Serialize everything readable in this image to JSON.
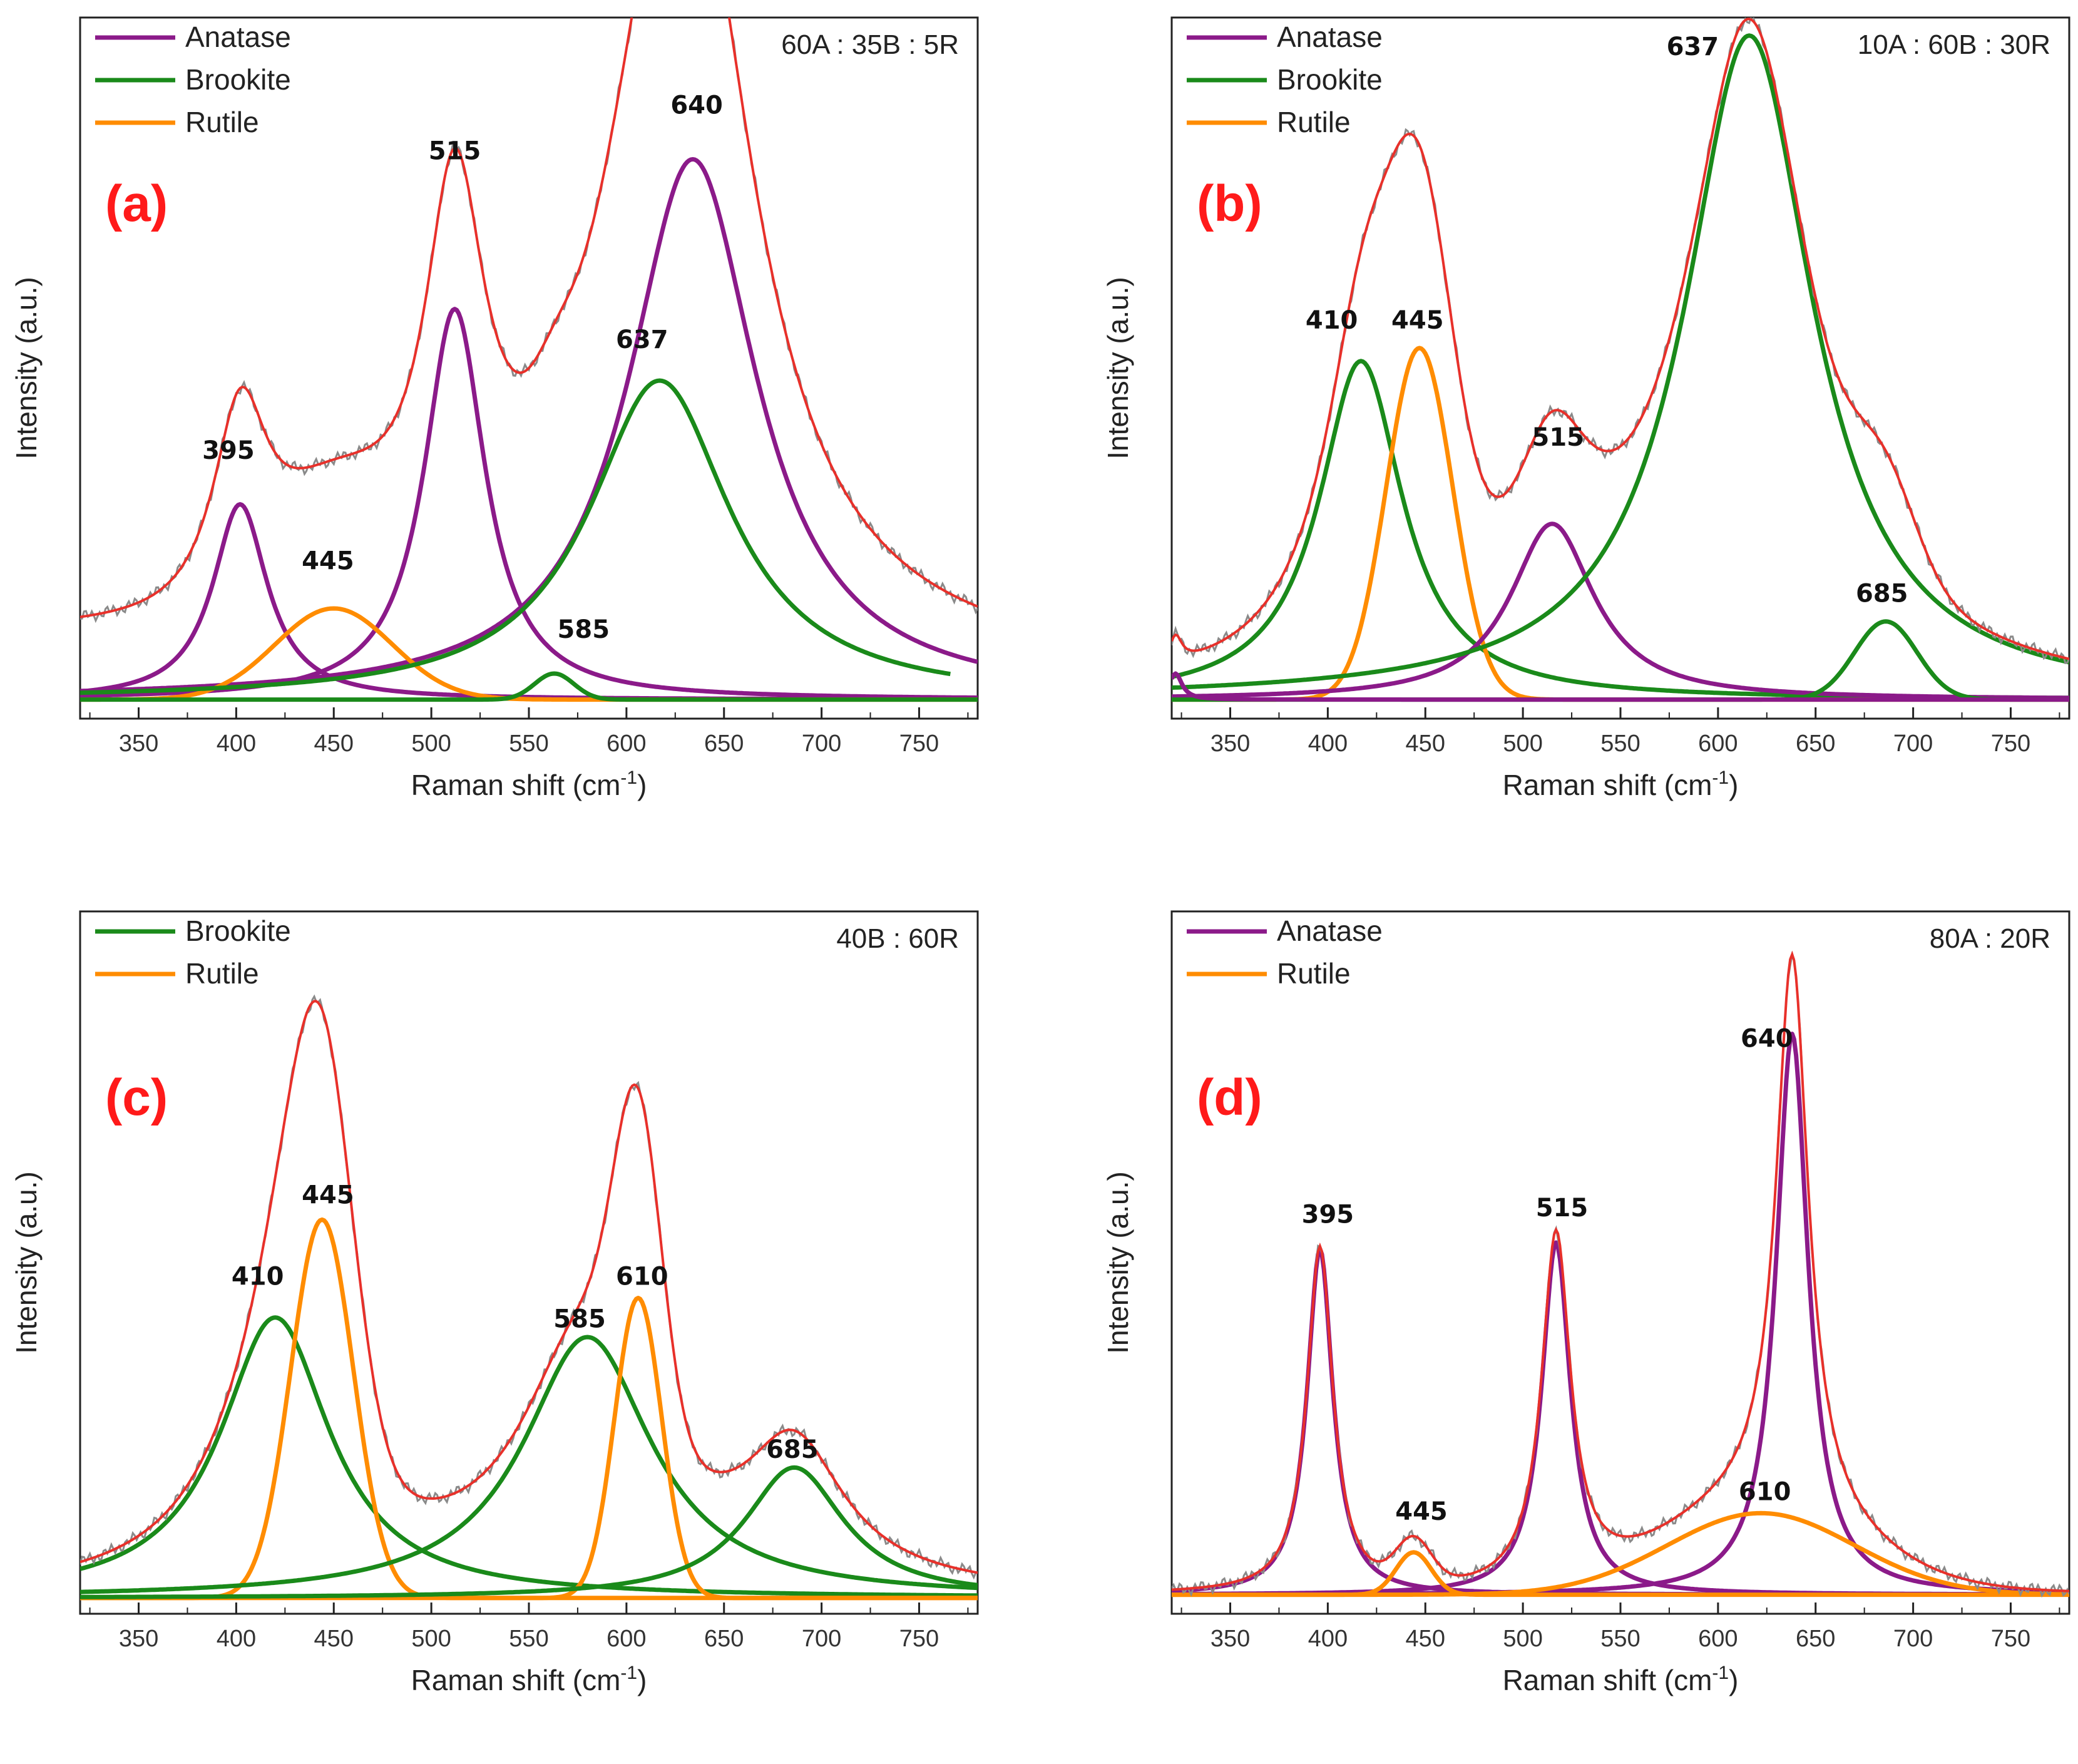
{
  "colors": {
    "anatase": "#8b1a89",
    "brookite": "#1a8a1a",
    "rutile": "#ff8c00",
    "fit": "#e8302a",
    "raw": "#8a8a8a",
    "panel_label": "#ff1a1a"
  },
  "chart_data": [
    {
      "type": "line",
      "panel": "(a)",
      "ratio": "60A : 35B : 5R",
      "xlabel_main": "Raman shift (cm",
      "xlabel_sup": "-1",
      "xlabel_close": ")",
      "ylabel": "Intensity (a.u.)",
      "xlim": [
        320,
        780
      ],
      "ylim": [
        0,
        1
      ],
      "xticks": [
        350,
        400,
        450,
        500,
        550,
        600,
        650,
        700,
        750
      ],
      "baseline": 0.01,
      "fit_offset": [
        0.095,
        -8e-05
      ],
      "fit_range": [
        320,
        780
      ],
      "legend": [
        {
          "name": "Anatase",
          "phase": "anatase"
        },
        {
          "name": "Brookite",
          "phase": "brookite"
        },
        {
          "name": "Rutile",
          "phase": "rutile"
        }
      ],
      "series": [
        {
          "phase": "anatase",
          "center": 402,
          "height": 0.3,
          "width": 17,
          "shape": "lorentz",
          "from": 320,
          "to": 780
        },
        {
          "phase": "anatase",
          "center": 512,
          "height": 0.6,
          "width": 19,
          "shape": "lorentz",
          "from": 320,
          "to": 780
        },
        {
          "phase": "anatase",
          "center": 634,
          "height": 0.83,
          "width": 40,
          "shape": "lorentz",
          "from": 320,
          "to": 780
        },
        {
          "phase": "rutile",
          "center": 450,
          "height": 0.14,
          "width": 30,
          "shape": "gauss",
          "from": 320,
          "to": 780
        },
        {
          "phase": "brookite",
          "center": 617,
          "height": 0.49,
          "width": 44,
          "shape": "lorentz",
          "from": 320,
          "to": 766
        },
        {
          "phase": "brookite",
          "center": 563,
          "height": 0.04,
          "width": 10,
          "shape": "gauss",
          "from": 320,
          "to": 780
        }
      ],
      "peak_labels": [
        {
          "text": "395",
          "x": 396,
          "y": 0.38
        },
        {
          "text": "445",
          "x": 447,
          "y": 0.21
        },
        {
          "text": "515",
          "x": 512,
          "y": 0.84
        },
        {
          "text": "585",
          "x": 578,
          "y": 0.105
        },
        {
          "text": "637",
          "x": 608,
          "y": 0.55
        },
        {
          "text": "640",
          "x": 636,
          "y": 0.91
        }
      ]
    },
    {
      "type": "line",
      "panel": "(b)",
      "ratio": "10A : 60B : 30R",
      "xlabel_main": "Raman shift (cm",
      "xlabel_sup": "-1",
      "xlabel_close": ")",
      "ylabel": "Intensity (a.u.)",
      "xlim": [
        320,
        780
      ],
      "ylim": [
        0,
        1
      ],
      "xticks": [
        350,
        400,
        450,
        500,
        550,
        600,
        650,
        700,
        750
      ],
      "baseline": 0.01,
      "fit_offset": [
        0.01,
        0
      ],
      "fit_range": [
        320,
        780
      ],
      "legend": [
        {
          "name": "Anatase",
          "phase": "anatase"
        },
        {
          "name": "Brookite",
          "phase": "brookite"
        },
        {
          "name": "Rutile",
          "phase": "rutile"
        }
      ],
      "series": [
        {
          "phase": "brookite",
          "center": 417,
          "height": 0.52,
          "width": 26,
          "shape": "lorentz",
          "from": 320,
          "to": 780
        },
        {
          "phase": "rutile",
          "center": 447,
          "height": 0.54,
          "width": 17,
          "shape": "gauss",
          "from": 320,
          "to": 780
        },
        {
          "phase": "anatase",
          "center": 515,
          "height": 0.27,
          "width": 26,
          "shape": "lorentz",
          "from": 320,
          "to": 780
        },
        {
          "phase": "brookite",
          "center": 616,
          "height": 1.02,
          "width": 40,
          "shape": "lorentz",
          "from": 320,
          "to": 780
        },
        {
          "phase": "brookite",
          "center": 686,
          "height": 0.12,
          "width": 16,
          "shape": "gauss",
          "from": 320,
          "to": 780
        },
        {
          "phase": "anatase",
          "center": 322,
          "height": 0.04,
          "width": 4,
          "shape": "lorentz",
          "from": 320,
          "to": 780
        }
      ],
      "peak_labels": [
        {
          "text": "410",
          "x": 402,
          "y": 0.58
        },
        {
          "text": "445",
          "x": 446,
          "y": 0.58
        },
        {
          "text": "515",
          "x": 518,
          "y": 0.4
        },
        {
          "text": "637",
          "x": 587,
          "y": 1.0
        },
        {
          "text": "685",
          "x": 684,
          "y": 0.16
        }
      ]
    },
    {
      "type": "line",
      "panel": "(c)",
      "ratio": "40B : 60R",
      "xlabel_main": "Raman shift (cm",
      "xlabel_sup": "-1",
      "xlabel_close": ")",
      "ylabel": "Intensity (a.u.)",
      "xlim": [
        320,
        780
      ],
      "ylim": [
        0,
        1
      ],
      "xticks": [
        350,
        400,
        450,
        500,
        550,
        600,
        650,
        700,
        750
      ],
      "baseline": 0.005,
      "fit_offset": [
        0.005,
        0
      ],
      "fit_range": [
        320,
        780
      ],
      "legend": [
        {
          "name": "Brookite",
          "phase": "brookite"
        },
        {
          "name": "Rutile",
          "phase": "rutile"
        }
      ],
      "series": [
        {
          "phase": "brookite",
          "center": 420,
          "height": 0.43,
          "width": 34,
          "shape": "lorentz",
          "from": 320,
          "to": 780
        },
        {
          "phase": "rutile",
          "center": 444,
          "height": 0.58,
          "width": 16,
          "shape": "gauss",
          "from": 320,
          "to": 780
        },
        {
          "phase": "brookite",
          "center": 580,
          "height": 0.4,
          "width": 40,
          "shape": "lorentz",
          "from": 320,
          "to": 780
        },
        {
          "phase": "rutile",
          "center": 606,
          "height": 0.46,
          "width": 12,
          "shape": "gauss",
          "from": 320,
          "to": 780
        },
        {
          "phase": "brookite",
          "center": 686,
          "height": 0.2,
          "width": 31,
          "shape": "lorentz",
          "from": 320,
          "to": 780
        }
      ],
      "peak_labels": [
        {
          "text": "410",
          "x": 411,
          "y": 0.485
        },
        {
          "text": "445",
          "x": 447,
          "y": 0.61
        },
        {
          "text": "585",
          "x": 576,
          "y": 0.42
        },
        {
          "text": "610",
          "x": 608,
          "y": 0.485
        },
        {
          "text": "685",
          "x": 685,
          "y": 0.22
        }
      ]
    },
    {
      "type": "line",
      "panel": "(d)",
      "ratio": "80A : 20R",
      "xlabel_main": "Raman shift (cm",
      "xlabel_sup": "-1",
      "xlabel_close": ")",
      "ylabel": "Intensity (a.u.)",
      "xlim": [
        320,
        780
      ],
      "ylim": [
        0,
        1
      ],
      "xticks": [
        350,
        400,
        450,
        500,
        550,
        600,
        650,
        700,
        750
      ],
      "baseline": 0.01,
      "fit_offset": [
        0.01,
        0
      ],
      "fit_range": [
        320,
        780
      ],
      "legend": [
        {
          "name": "Anatase",
          "phase": "anatase"
        },
        {
          "name": "Rutile",
          "phase": "rutile"
        }
      ],
      "series": [
        {
          "phase": "anatase",
          "center": 396,
          "height": 0.53,
          "width": 8,
          "shape": "lorentz",
          "from": 320,
          "to": 780
        },
        {
          "phase": "anatase",
          "center": 517,
          "height": 0.54,
          "width": 9,
          "shape": "lorentz",
          "from": 320,
          "to": 780
        },
        {
          "phase": "anatase",
          "center": 638,
          "height": 0.86,
          "width": 10,
          "shape": "lorentz",
          "from": 320,
          "to": 780
        },
        {
          "phase": "rutile",
          "center": 444,
          "height": 0.065,
          "width": 9,
          "shape": "gauss",
          "from": 320,
          "to": 780
        },
        {
          "phase": "rutile",
          "center": 622,
          "height": 0.125,
          "width": 48,
          "shape": "gauss",
          "from": 320,
          "to": 780
        }
      ],
      "peak_labels": [
        {
          "text": "395",
          "x": 400,
          "y": 0.58
        },
        {
          "text": "445",
          "x": 448,
          "y": 0.125
        },
        {
          "text": "515",
          "x": 520,
          "y": 0.59
        },
        {
          "text": "610",
          "x": 624,
          "y": 0.155
        },
        {
          "text": "640",
          "x": 625,
          "y": 0.85
        }
      ]
    }
  ]
}
